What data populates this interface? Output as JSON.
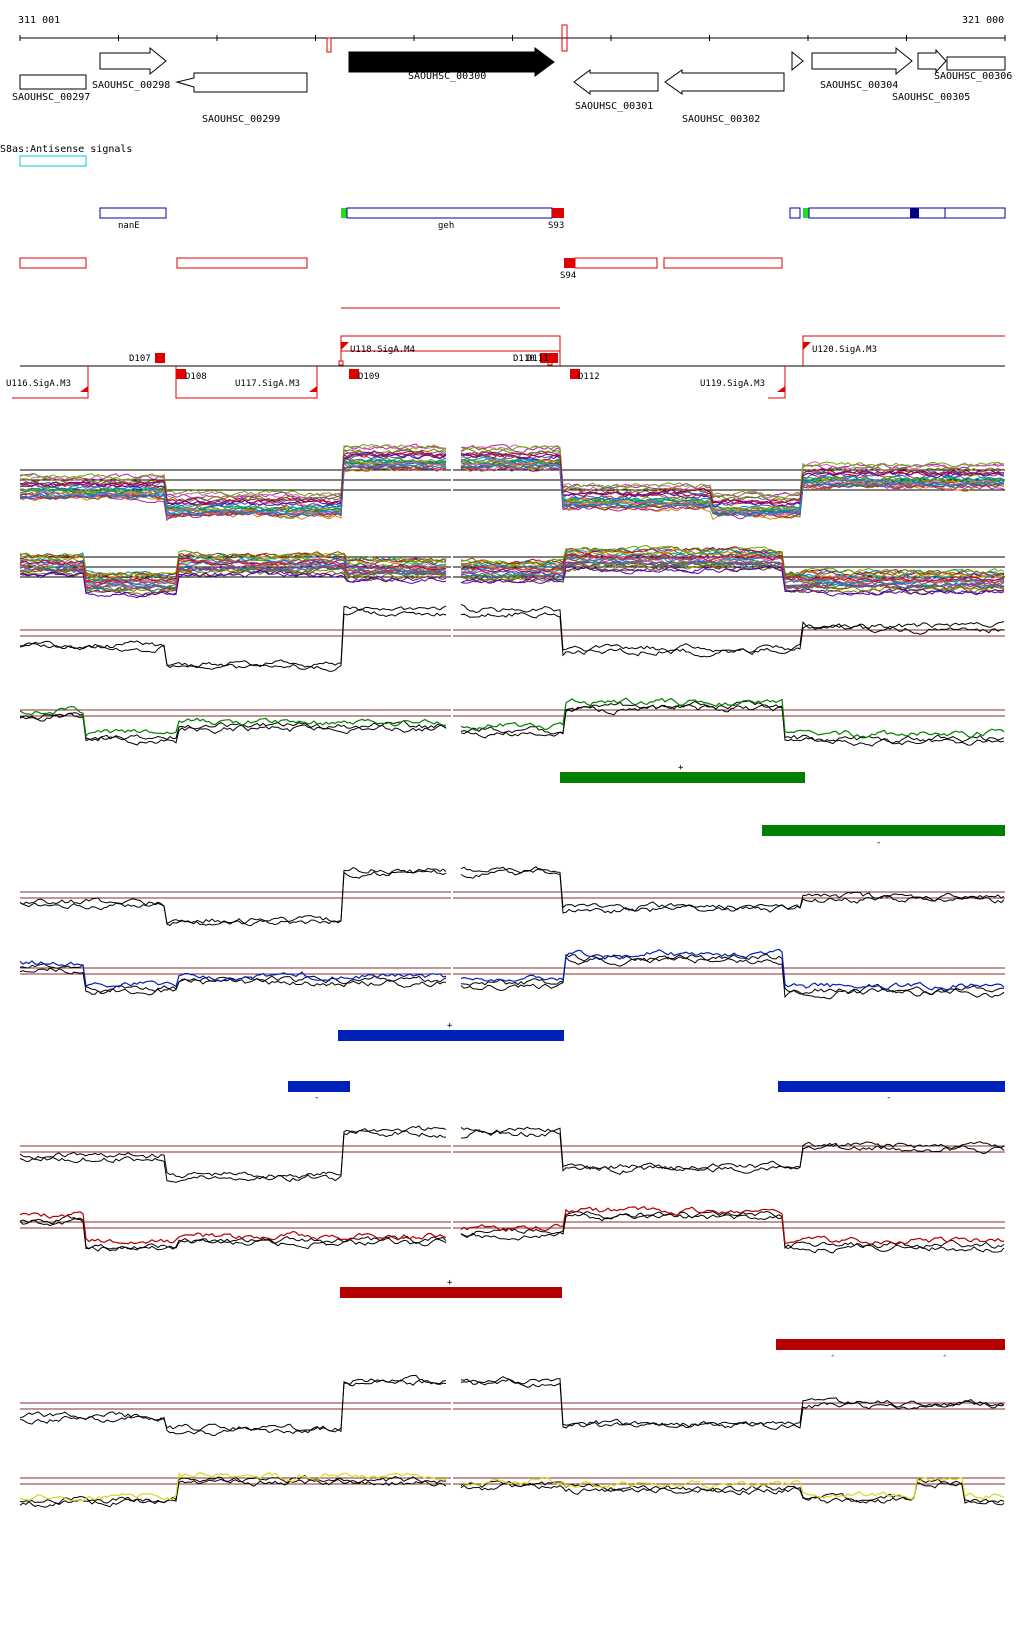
{
  "coords": {
    "start": "311 001",
    "end": "321 000"
  },
  "genes": [
    {
      "id": "g297",
      "label": "SAOUHSC_00297"
    },
    {
      "id": "g298",
      "label": "SAOUHSC_00298"
    },
    {
      "id": "g299",
      "label": "SAOUHSC_00299"
    },
    {
      "id": "g300",
      "label": "SAOUHSC_00300"
    },
    {
      "id": "g301",
      "label": "SAOUHSC_00301"
    },
    {
      "id": "g302",
      "label": "SAOUHSC_00302"
    },
    {
      "id": "g304",
      "label": "SAOUHSC_00304"
    },
    {
      "id": "g305",
      "label": "SAOUHSC_00305"
    },
    {
      "id": "g306",
      "label": "SAOUHSC_00306"
    }
  ],
  "antisense_title": "S8as:Antisense signals",
  "annotations": {
    "nanE": "nanE",
    "geh": "geh",
    "s93": "S93",
    "s94": "S94"
  },
  "tss": {
    "d107": "D107",
    "d108": "D108",
    "d109": "D109",
    "d110": "D110",
    "d111": "D111",
    "d112": "D112",
    "u116": "U116.SigA.M3",
    "u117": "U117.SigA.M3",
    "u118": "U118.SigA.M4",
    "u119": "U119.SigA.M3",
    "u120": "U120.SigA.M3"
  },
  "strand": {
    "plus": "+",
    "minus": "-"
  },
  "colors": {
    "green": "#008000",
    "blue": "#0022bb",
    "red": "#b30000",
    "yellow": "#d8d820",
    "gene_outline": "#000000",
    "annot_blue": "#0000aa",
    "annot_red": "#e00000",
    "cyan": "#00ccdd"
  }
}
